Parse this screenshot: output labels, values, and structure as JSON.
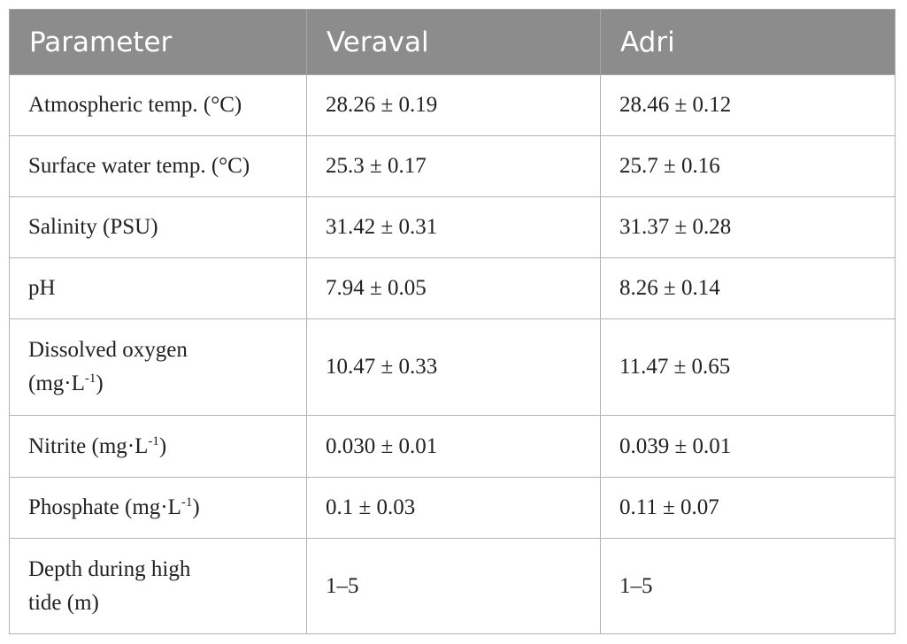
{
  "table": {
    "headers": [
      "Parameter",
      "Veraval",
      "Adri"
    ],
    "rows": [
      {
        "parameter": "Atmospheric temp. (°C)",
        "veraval": "28.26 ± 0.19",
        "adri": "28.46 ± 0.12"
      },
      {
        "parameter": "Surface water temp. (°C)",
        "veraval": "25.3 ± 0.17",
        "adri": "25.7 ± 0.16"
      },
      {
        "parameter": "Salinity (PSU)",
        "veraval": "31.42 ± 0.31",
        "adri": "31.37 ± 0.28"
      },
      {
        "parameter": "pH",
        "veraval": "7.94 ± 0.05",
        "adri": "8.26 ± 0.14"
      },
      {
        "parameter_main": "Dissolved oxygen",
        "parameter_unit": "(mg·L",
        "parameter_sup": "-1",
        "parameter_close": ")",
        "veraval": "10.47 ± 0.33",
        "adri": "11.47 ± 0.65"
      },
      {
        "parameter_main": "Nitrite (mg·L",
        "parameter_sup": "-1",
        "parameter_close": ")",
        "veraval": "0.030 ± 0.01",
        "adri": "0.039 ± 0.01"
      },
      {
        "parameter_main": "Phosphate (mg·L",
        "parameter_sup": "-1",
        "parameter_close": ")",
        "veraval": "0.1 ± 0.03",
        "adri": "0.11 ± 0.07"
      },
      {
        "parameter_line1": "Depth during high",
        "parameter_line2": "tide (m)",
        "veraval": "1–5",
        "adri": "1–5"
      }
    ]
  }
}
